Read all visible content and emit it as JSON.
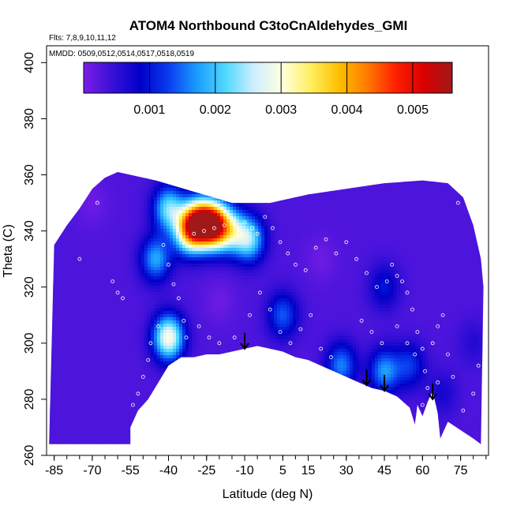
{
  "chart_data": {
    "type": "heatmap",
    "title": "ATOM4 Northbound C3toCnAldehydes_GMI",
    "flights_note": "Flts: 7,8,9,10,11,12",
    "dates_note": "MMDD: 0509,0512,0514,0517,0518,0519",
    "xlabel": "Latitude (deg N)",
    "ylabel": "Theta (C)",
    "xlim": [
      -88,
      86
    ],
    "ylim": [
      260,
      406
    ],
    "x_ticks": [
      -85,
      -70,
      -55,
      -40,
      -25,
      -10,
      5,
      15,
      30,
      45,
      60,
      75
    ],
    "x_tick_labels": [
      "-85",
      "-70",
      "-55",
      "-40",
      "-25",
      "-10",
      "5",
      "15",
      "30",
      "45",
      "60",
      "75"
    ],
    "y_ticks": [
      260,
      280,
      300,
      320,
      340,
      360,
      380,
      400
    ],
    "y_tick_labels": [
      "260",
      "280",
      "300",
      "320",
      "340",
      "360",
      "380",
      "400"
    ],
    "colorbar": {
      "range": [
        0,
        0.0056
      ],
      "ticks": [
        0.001,
        0.002,
        0.003,
        0.004,
        0.005
      ],
      "tick_labels": [
        "0.001",
        "0.002",
        "0.003",
        "0.004",
        "0.005"
      ],
      "colors": [
        "#7a1ee6",
        "#3a10d8",
        "#0000c8",
        "#0a3cf0",
        "#1a9cff",
        "#50d8ff",
        "#cdeeff",
        "#ffffe0",
        "#fff060",
        "#ffc000",
        "#ff7a00",
        "#ff2000",
        "#d80000",
        "#a01818"
      ]
    },
    "field": {
      "background_value": 0.0003,
      "blobs": [
        {
          "lat": -28,
          "theta": 343,
          "value": 0.004
        },
        {
          "lat": -22,
          "theta": 342,
          "value": 0.0048
        },
        {
          "lat": -32,
          "theta": 340,
          "value": 0.003
        },
        {
          "lat": -40,
          "theta": 348,
          "value": 0.0022
        },
        {
          "lat": -45,
          "theta": 330,
          "value": 0.0018
        },
        {
          "lat": -40,
          "theta": 302,
          "value": 0.003
        },
        {
          "lat": -15,
          "theta": 340,
          "value": 0.002
        },
        {
          "lat": -8,
          "theta": 337,
          "value": 0.0022
        },
        {
          "lat": 5,
          "theta": 310,
          "value": 0.0014
        },
        {
          "lat": 28,
          "theta": 292,
          "value": 0.0016
        },
        {
          "lat": 45,
          "theta": 290,
          "value": 0.0017
        },
        {
          "lat": 55,
          "theta": 292,
          "value": 0.0012
        },
        {
          "lat": 45,
          "theta": 320,
          "value": 0.001
        },
        {
          "lat": -70,
          "theta": 350,
          "value": 0.0001
        },
        {
          "lat": -20,
          "theta": 315,
          "value": 0.0001
        },
        {
          "lat": 20,
          "theta": 330,
          "value": 0.0001
        },
        {
          "lat": 80,
          "theta": 300,
          "value": 0.0006
        },
        {
          "lat": 68,
          "theta": 282,
          "value": 0.0007
        }
      ]
    },
    "ground_profile": [
      {
        "lat": -55,
        "theta": 270
      },
      {
        "lat": -52,
        "theta": 276
      },
      {
        "lat": -48,
        "theta": 280
      },
      {
        "lat": -44,
        "theta": 286
      },
      {
        "lat": -40,
        "theta": 292
      },
      {
        "lat": -35,
        "theta": 295
      },
      {
        "lat": -30,
        "theta": 295
      },
      {
        "lat": -25,
        "theta": 296
      },
      {
        "lat": -20,
        "theta": 296
      },
      {
        "lat": -15,
        "theta": 297
      },
      {
        "lat": -10,
        "theta": 298
      },
      {
        "lat": -5,
        "theta": 299
      },
      {
        "lat": 0,
        "theta": 298
      },
      {
        "lat": 5,
        "theta": 297
      },
      {
        "lat": 10,
        "theta": 295
      },
      {
        "lat": 15,
        "theta": 294
      },
      {
        "lat": 20,
        "theta": 292
      },
      {
        "lat": 25,
        "theta": 290
      },
      {
        "lat": 30,
        "theta": 288
      },
      {
        "lat": 35,
        "theta": 286
      },
      {
        "lat": 40,
        "theta": 284
      },
      {
        "lat": 45,
        "theta": 283
      },
      {
        "lat": 50,
        "theta": 281
      },
      {
        "lat": 55,
        "theta": 277
      },
      {
        "lat": 57,
        "theta": 271
      },
      {
        "lat": 58,
        "theta": 278
      },
      {
        "lat": 60,
        "theta": 274
      },
      {
        "lat": 62,
        "theta": 279
      },
      {
        "lat": 64,
        "theta": 283
      },
      {
        "lat": 66,
        "theta": 275
      },
      {
        "lat": 67,
        "theta": 266
      },
      {
        "lat": 70,
        "theta": 272
      },
      {
        "lat": 75,
        "theta": 269
      },
      {
        "lat": 80,
        "theta": 266
      },
      {
        "lat": 83,
        "theta": 264
      }
    ],
    "top_profile": [
      {
        "lat": -85,
        "theta": 335
      },
      {
        "lat": -80,
        "theta": 342
      },
      {
        "lat": -75,
        "theta": 348
      },
      {
        "lat": -70,
        "theta": 355
      },
      {
        "lat": -65,
        "theta": 359
      },
      {
        "lat": -60,
        "theta": 361
      },
      {
        "lat": -55,
        "theta": 360
      },
      {
        "lat": -45,
        "theta": 358
      },
      {
        "lat": -30,
        "theta": 354
      },
      {
        "lat": -15,
        "theta": 350
      },
      {
        "lat": 0,
        "theta": 350
      },
      {
        "lat": 15,
        "theta": 353
      },
      {
        "lat": 30,
        "theta": 355
      },
      {
        "lat": 45,
        "theta": 357
      },
      {
        "lat": 60,
        "theta": 358
      },
      {
        "lat": 70,
        "theta": 357
      },
      {
        "lat": 76,
        "theta": 352
      },
      {
        "lat": 80,
        "theta": 342
      },
      {
        "lat": 83,
        "theta": 330
      },
      {
        "lat": 84,
        "theta": 320
      }
    ],
    "left_cut": {
      "lat_start": -87,
      "lat_cliff": -55,
      "theta_bottom": 264
    },
    "arrows": [
      {
        "lat": -10,
        "theta": 298
      },
      {
        "lat": 38,
        "theta": 285
      },
      {
        "lat": 45,
        "theta": 283
      },
      {
        "lat": 64,
        "theta": 280
      }
    ],
    "observations": [
      {
        "lat": -42,
        "theta": 335
      },
      {
        "lat": -40,
        "theta": 328
      },
      {
        "lat": -38,
        "theta": 321
      },
      {
        "lat": -36,
        "theta": 316
      },
      {
        "lat": -34,
        "theta": 308
      },
      {
        "lat": -33,
        "theta": 302
      },
      {
        "lat": -44,
        "theta": 306
      },
      {
        "lat": -47,
        "theta": 300
      },
      {
        "lat": -48,
        "theta": 294
      },
      {
        "lat": -50,
        "theta": 288
      },
      {
        "lat": -52,
        "theta": 282
      },
      {
        "lat": -54,
        "theta": 278
      },
      {
        "lat": -30,
        "theta": 339
      },
      {
        "lat": -26,
        "theta": 340
      },
      {
        "lat": -22,
        "theta": 341
      },
      {
        "lat": -18,
        "theta": 342
      },
      {
        "lat": -14,
        "theta": 344
      },
      {
        "lat": -10,
        "theta": 343
      },
      {
        "lat": -7,
        "theta": 341
      },
      {
        "lat": -5,
        "theta": 339
      },
      {
        "lat": -2,
        "theta": 345
      },
      {
        "lat": 1,
        "theta": 341
      },
      {
        "lat": 4,
        "theta": 336
      },
      {
        "lat": 7,
        "theta": 332
      },
      {
        "lat": 10,
        "theta": 328
      },
      {
        "lat": 14,
        "theta": 326
      },
      {
        "lat": 18,
        "theta": 334
      },
      {
        "lat": 22,
        "theta": 337
      },
      {
        "lat": 26,
        "theta": 332
      },
      {
        "lat": 30,
        "theta": 336
      },
      {
        "lat": 34,
        "theta": 330
      },
      {
        "lat": 38,
        "theta": 325
      },
      {
        "lat": 42,
        "theta": 320
      },
      {
        "lat": 46,
        "theta": 322
      },
      {
        "lat": 48,
        "theta": 328
      },
      {
        "lat": 50,
        "theta": 324
      },
      {
        "lat": 52,
        "theta": 322
      },
      {
        "lat": 54,
        "theta": 318
      },
      {
        "lat": 56,
        "theta": 312
      },
      {
        "lat": 58,
        "theta": 304
      },
      {
        "lat": 60,
        "theta": 298
      },
      {
        "lat": 61,
        "theta": 290
      },
      {
        "lat": 62,
        "theta": 284
      },
      {
        "lat": 64,
        "theta": 300
      },
      {
        "lat": 66,
        "theta": 306
      },
      {
        "lat": 68,
        "theta": 310
      },
      {
        "lat": 70,
        "theta": 296
      },
      {
        "lat": 72,
        "theta": 288
      },
      {
        "lat": 74,
        "theta": 350
      },
      {
        "lat": 76,
        "theta": 353
      },
      {
        "lat": 78,
        "theta": 355
      },
      {
        "lat": -75,
        "theta": 330
      },
      {
        "lat": -68,
        "theta": 350
      },
      {
        "lat": -62,
        "theta": 322
      },
      {
        "lat": -60,
        "theta": 318
      },
      {
        "lat": -58,
        "theta": 316
      },
      {
        "lat": -28,
        "theta": 306
      },
      {
        "lat": -24,
        "theta": 302
      },
      {
        "lat": -20,
        "theta": 300
      },
      {
        "lat": -14,
        "theta": 302
      },
      {
        "lat": -8,
        "theta": 310
      },
      {
        "lat": -4,
        "theta": 318
      },
      {
        "lat": 0,
        "theta": 312
      },
      {
        "lat": 4,
        "theta": 304
      },
      {
        "lat": 8,
        "theta": 300
      },
      {
        "lat": 12,
        "theta": 305
      },
      {
        "lat": 16,
        "theta": 310
      },
      {
        "lat": 20,
        "theta": 298
      },
      {
        "lat": 24,
        "theta": 295
      },
      {
        "lat": 36,
        "theta": 308
      },
      {
        "lat": 40,
        "theta": 304
      },
      {
        "lat": 44,
        "theta": 300
      },
      {
        "lat": 50,
        "theta": 306
      },
      {
        "lat": 54,
        "theta": 300
      },
      {
        "lat": 57,
        "theta": 296
      },
      {
        "lat": 60,
        "theta": 278
      },
      {
        "lat": 66,
        "theta": 286
      },
      {
        "lat": 70,
        "theta": 270
      },
      {
        "lat": 76,
        "theta": 276
      },
      {
        "lat": 80,
        "theta": 282
      },
      {
        "lat": 82,
        "theta": 292
      }
    ]
  }
}
